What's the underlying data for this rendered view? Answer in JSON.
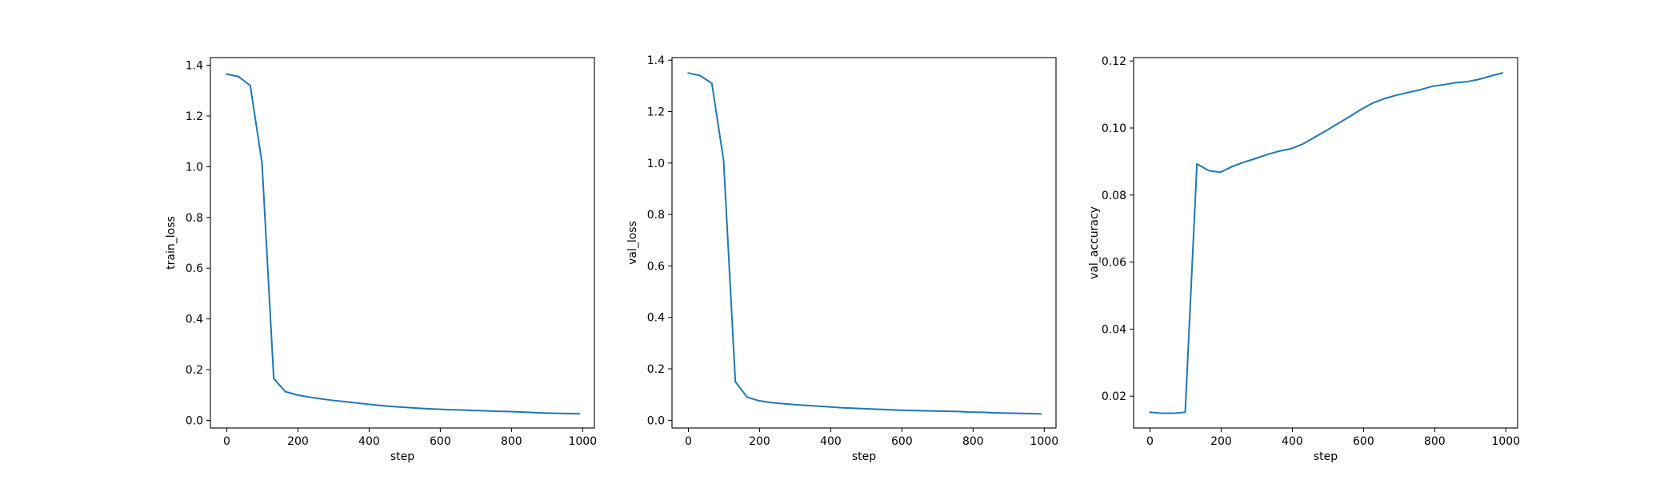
{
  "chart_data": [
    {
      "type": "line",
      "xlabel": "step",
      "ylabel": "train_loss",
      "xlim": [
        -46,
        1033
      ],
      "ylim": [
        -0.03,
        1.43
      ],
      "xticks": [
        "0",
        "200",
        "400",
        "600",
        "800",
        "1000"
      ],
      "yticks": [
        "0.0",
        "0.2",
        "0.4",
        "0.6",
        "0.8",
        "1.0",
        "1.2",
        "1.4"
      ],
      "grid": false,
      "color": "#1f77b4",
      "x": [
        0,
        33,
        66,
        99,
        132,
        165,
        198,
        231,
        264,
        297,
        330,
        363,
        396,
        429,
        462,
        495,
        528,
        561,
        594,
        627,
        660,
        693,
        726,
        759,
        792,
        825,
        858,
        891,
        924,
        957,
        990
      ],
      "y": [
        1.365,
        1.355,
        1.32,
        1.015,
        0.165,
        0.113,
        0.1,
        0.092,
        0.085,
        0.079,
        0.074,
        0.069,
        0.064,
        0.059,
        0.055,
        0.052,
        0.049,
        0.046,
        0.044,
        0.042,
        0.041,
        0.039,
        0.038,
        0.036,
        0.035,
        0.033,
        0.031,
        0.029,
        0.028,
        0.027,
        0.026
      ]
    },
    {
      "type": "line",
      "xlabel": "step",
      "ylabel": "val_loss",
      "xlim": [
        -46,
        1033
      ],
      "ylim": [
        -0.03,
        1.41
      ],
      "xticks": [
        "0",
        "200",
        "400",
        "600",
        "800",
        "1000"
      ],
      "yticks": [
        "0.0",
        "0.2",
        "0.4",
        "0.6",
        "0.8",
        "1.0",
        "1.2",
        "1.4"
      ],
      "grid": false,
      "color": "#1f77b4",
      "x": [
        0,
        33,
        66,
        99,
        132,
        165,
        198,
        231,
        264,
        297,
        330,
        363,
        396,
        429,
        462,
        495,
        528,
        561,
        594,
        627,
        660,
        693,
        726,
        759,
        792,
        825,
        858,
        891,
        924,
        957,
        990
      ],
      "y": [
        1.35,
        1.34,
        1.31,
        1.01,
        0.15,
        0.09,
        0.076,
        0.069,
        0.065,
        0.061,
        0.058,
        0.055,
        0.052,
        0.049,
        0.047,
        0.045,
        0.043,
        0.041,
        0.039,
        0.038,
        0.037,
        0.036,
        0.035,
        0.034,
        0.032,
        0.031,
        0.029,
        0.028,
        0.027,
        0.026,
        0.025
      ]
    },
    {
      "type": "line",
      "xlabel": "step",
      "ylabel": "val_accuracy",
      "xlim": [
        -46,
        1033
      ],
      "ylim": [
        0.0105,
        0.121
      ],
      "xticks": [
        "0",
        "200",
        "400",
        "600",
        "800",
        "1000"
      ],
      "yticks": [
        "0.02",
        "0.04",
        "0.06",
        "0.08",
        "0.10",
        "0.12"
      ],
      "grid": false,
      "color": "#1f77b4",
      "x": [
        0,
        33,
        66,
        99,
        132,
        165,
        198,
        231,
        264,
        297,
        330,
        363,
        396,
        429,
        462,
        495,
        528,
        561,
        594,
        627,
        660,
        693,
        726,
        759,
        792,
        825,
        858,
        891,
        924,
        957,
        990
      ],
      "y": [
        0.0152,
        0.0149,
        0.0149,
        0.0152,
        0.0893,
        0.0873,
        0.0868,
        0.0885,
        0.0898,
        0.0909,
        0.0921,
        0.0931,
        0.0938,
        0.0952,
        0.0972,
        0.0992,
        0.1013,
        0.1034,
        0.1056,
        0.1075,
        0.1088,
        0.1098,
        0.1106,
        0.1114,
        0.1124,
        0.1129,
        0.1135,
        0.1138,
        0.1145,
        0.1155,
        0.1164
      ]
    }
  ]
}
